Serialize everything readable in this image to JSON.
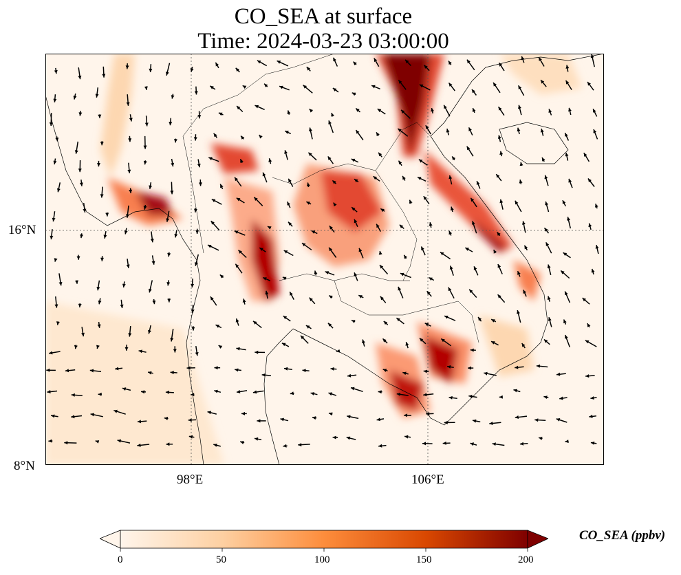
{
  "title": {
    "line1": "CO_SEA at surface",
    "line2": "Time: 2024-03-23 03:00:00"
  },
  "axes": {
    "lat_ticks": [
      "16°N",
      "8°N"
    ],
    "lon_ticks": [
      "98°E",
      "106°E"
    ]
  },
  "colorbar": {
    "label": "CO_SEA (ppbv)",
    "ticks": [
      "0",
      "50",
      "100",
      "150",
      "200"
    ],
    "colors": [
      "#fff5eb",
      "#fdd0a2",
      "#fd8d3c",
      "#d94801",
      "#7f0000"
    ]
  },
  "chart_data": {
    "type": "heatmap",
    "title": "CO_SEA at surface",
    "subtitle": "Time: 2024-03-23 03:00:00",
    "colorbar_range": [
      0,
      200
    ],
    "units": "ppbv",
    "lon_range": [
      93,
      112
    ],
    "lat_range": [
      8,
      22
    ],
    "grid": true,
    "extend": "both"
  }
}
